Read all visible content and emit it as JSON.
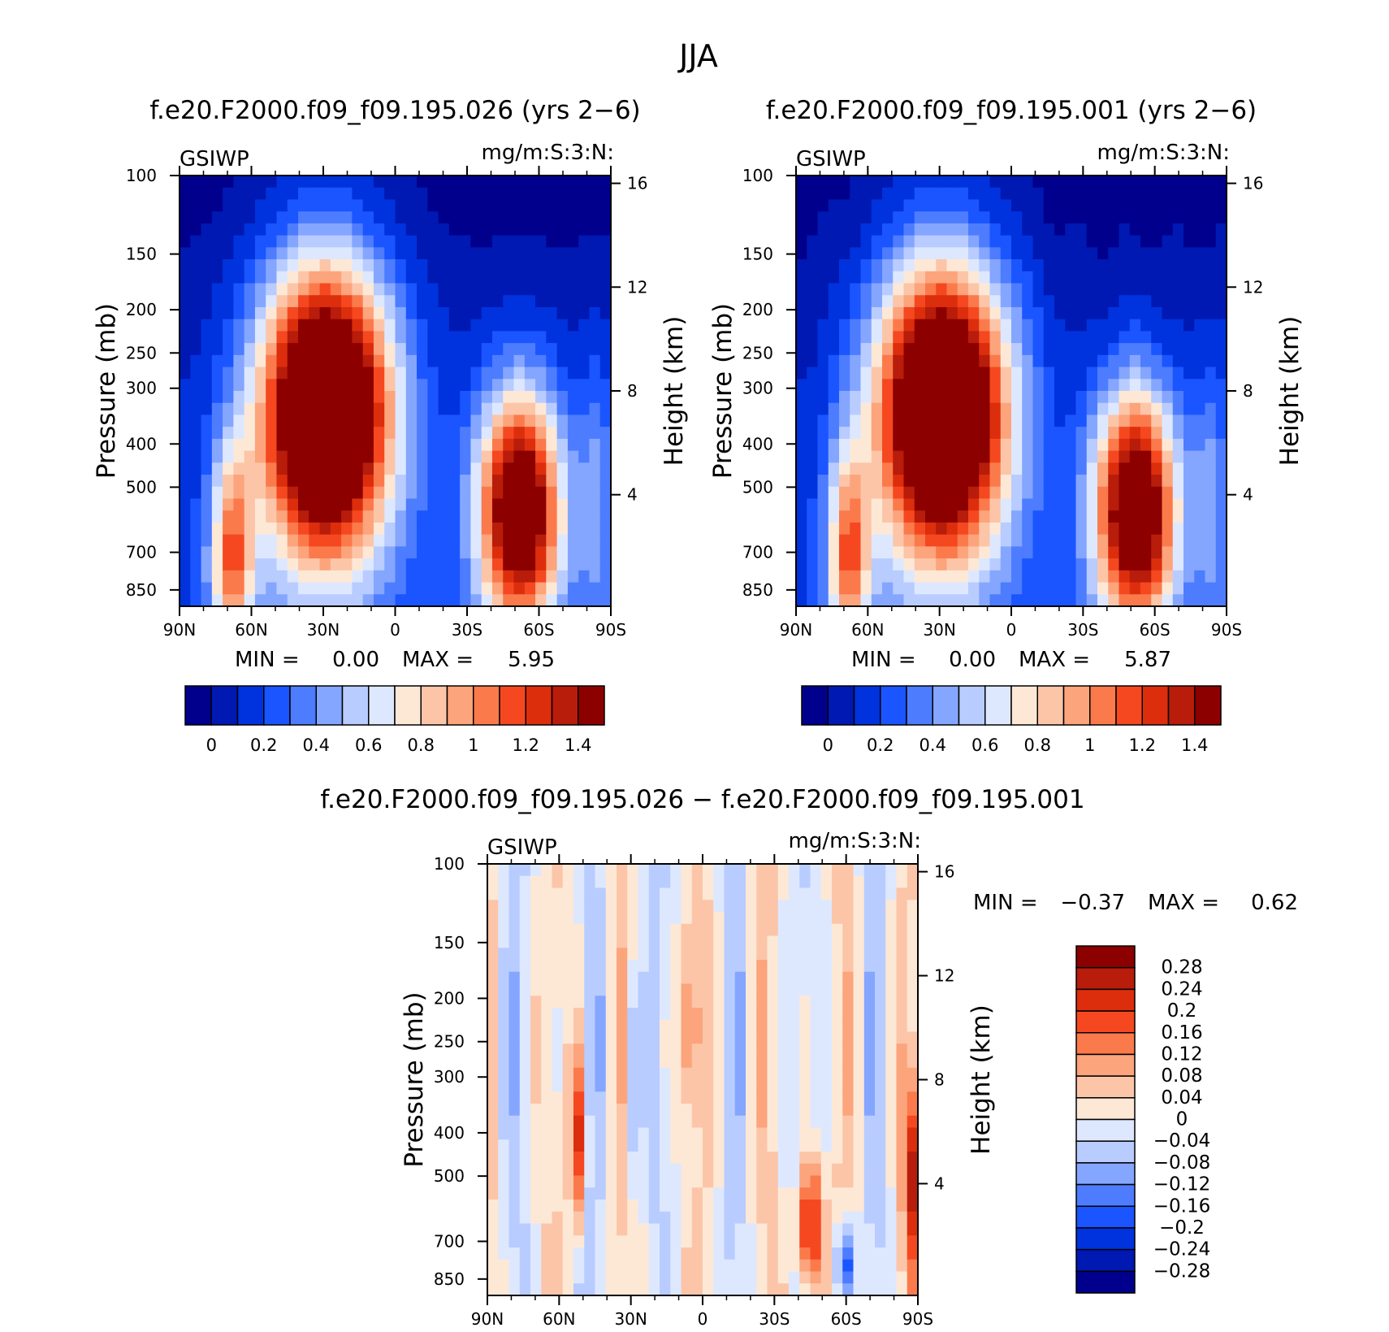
{
  "figure": {
    "title": "JJA"
  },
  "chart_data": [
    {
      "type": "heatmap",
      "title": "f.e20.F2000.f09_f09.195.026 (yrs 2−6)",
      "left_label": "GSIWP",
      "units_label": "mg/m:S:3:N:",
      "ylabel": "Pressure (mb)",
      "y2label": "Height (km)",
      "x_ticks": [
        "90N",
        "60N",
        "30N",
        "0",
        "30S",
        "60S",
        "90S"
      ],
      "y_ticks": [
        "100",
        "150",
        "200",
        "250",
        "300",
        "400",
        "500",
        "700",
        "850"
      ],
      "y2_ticks": [
        "16",
        "12",
        "8",
        "4"
      ],
      "ylim": [
        100,
        925
      ],
      "stats": {
        "min_label": "MIN =",
        "min_value": "0.00",
        "max_label": "MAX =",
        "max_value": "5.95"
      },
      "colorbar": {
        "levels": [
          "0",
          "0.2",
          "0.4",
          "0.6",
          "0.8",
          "1",
          "1.2",
          "1.4"
        ],
        "colors": [
          "#00008c",
          "#0019b3",
          "#0033dd",
          "#1a55ff",
          "#4d7cff",
          "#85a6ff",
          "#b8ccff",
          "#dde8ff",
          "#fde8d6",
          "#fcc5a8",
          "#fca47c",
          "#fb7a4b",
          "#f54820",
          "#dc2e0d",
          "#b81c0a",
          "#8c0000"
        ]
      }
    },
    {
      "type": "heatmap",
      "title": "f.e20.F2000.f09_f09.195.001 (yrs 2−6)",
      "left_label": "GSIWP",
      "units_label": "mg/m:S:3:N:",
      "ylabel": "Pressure (mb)",
      "y2label": "Height (km)",
      "x_ticks": [
        "90N",
        "60N",
        "30N",
        "0",
        "30S",
        "60S",
        "90S"
      ],
      "y_ticks": [
        "100",
        "150",
        "200",
        "250",
        "300",
        "400",
        "500",
        "700",
        "850"
      ],
      "y2_ticks": [
        "16",
        "12",
        "8",
        "4"
      ],
      "ylim": [
        100,
        925
      ],
      "stats": {
        "min_label": "MIN =",
        "min_value": "0.00",
        "max_label": "MAX =",
        "max_value": "5.87"
      },
      "colorbar": {
        "levels": [
          "0",
          "0.2",
          "0.4",
          "0.6",
          "0.8",
          "1",
          "1.2",
          "1.4"
        ],
        "colors": [
          "#00008c",
          "#0019b3",
          "#0033dd",
          "#1a55ff",
          "#4d7cff",
          "#85a6ff",
          "#b8ccff",
          "#dde8ff",
          "#fde8d6",
          "#fcc5a8",
          "#fca47c",
          "#fb7a4b",
          "#f54820",
          "#dc2e0d",
          "#b81c0a",
          "#8c0000"
        ]
      }
    },
    {
      "type": "heatmap",
      "title": "f.e20.F2000.f09_f09.195.026 − f.e20.F2000.f09_f09.195.001",
      "left_label": "GSIWP",
      "units_label": "mg/m:S:3:N:",
      "ylabel": "Pressure (mb)",
      "y2label": "Height (km)",
      "x_ticks": [
        "90N",
        "60N",
        "30N",
        "0",
        "30S",
        "60S",
        "90S"
      ],
      "y_ticks": [
        "100",
        "150",
        "200",
        "250",
        "300",
        "400",
        "500",
        "700",
        "850"
      ],
      "y2_ticks": [
        "16",
        "12",
        "8",
        "4"
      ],
      "ylim": [
        100,
        925
      ],
      "stats": {
        "min_label": "MIN =",
        "min_value": "−0.37",
        "max_label": "MAX =",
        "max_value": "0.62"
      },
      "colorbar": {
        "levels": [
          "0.28",
          "0.24",
          "0.2",
          "0.16",
          "0.12",
          "0.08",
          "0.04",
          "0",
          "−0.04",
          "−0.08",
          "−0.12",
          "−0.16",
          "−0.2",
          "−0.24",
          "−0.28"
        ],
        "colors": [
          "#8c0000",
          "#b81c0a",
          "#dc2e0d",
          "#f54820",
          "#fb7a4b",
          "#fca47c",
          "#fcc5a8",
          "#fde8d6",
          "#dde8ff",
          "#b8ccff",
          "#85a6ff",
          "#4d7cff",
          "#1a55ff",
          "#0033dd",
          "#0019b3",
          "#00008c"
        ]
      }
    }
  ]
}
